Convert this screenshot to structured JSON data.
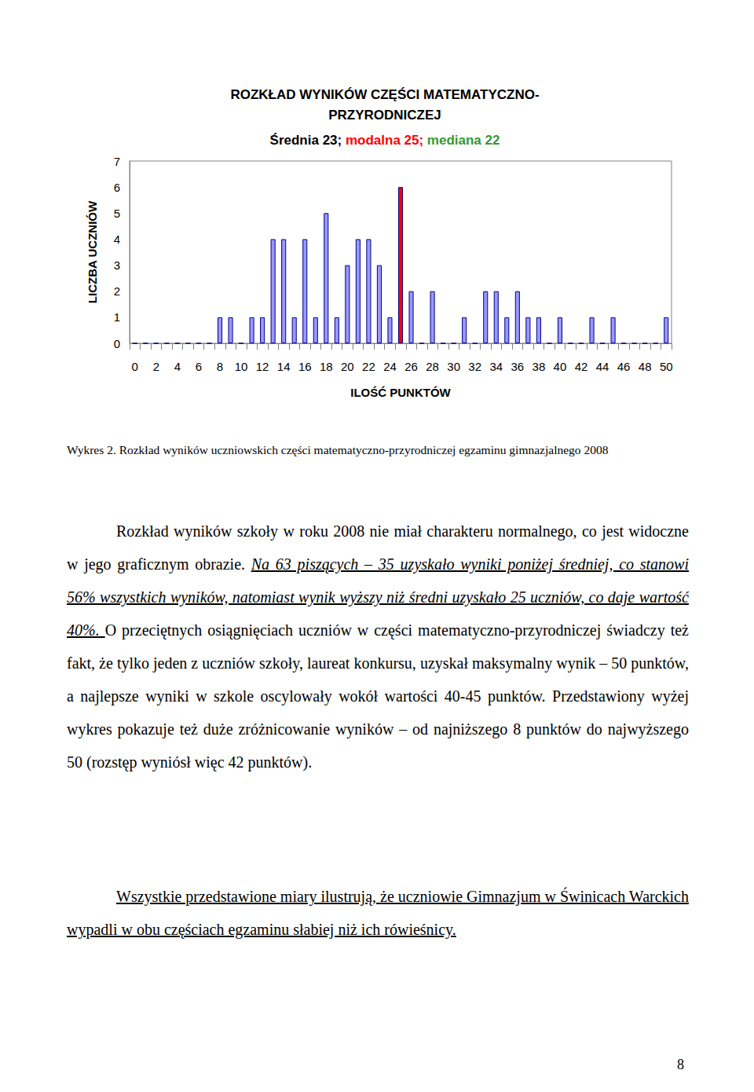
{
  "chart_data": {
    "type": "bar",
    "title": "ROZKŁAD WYNIKÓW CZĘŚCI MATEMATYCZNO-\nPRZYRODNICZEJ",
    "subtitle": [
      {
        "text": "Średnia 23; ",
        "color": "#000000"
      },
      {
        "text": "modalna 25; ",
        "color": "#ff0000"
      },
      {
        "text": "mediana 22",
        "color": "#339933"
      }
    ],
    "x_label": "ILOŚĆ PUNKTÓW",
    "y_label": "LICZBA UCZNIÓW",
    "categories": [
      "0",
      null,
      "2",
      null,
      "4",
      null,
      "6",
      null,
      "8",
      null,
      "10",
      null,
      "12",
      null,
      "14",
      null,
      "16",
      null,
      "18",
      null,
      "20",
      null,
      "22",
      null,
      "24",
      null,
      "26",
      null,
      "28",
      null,
      "30",
      null,
      "32",
      null,
      "34",
      null,
      "36",
      null,
      "38",
      null,
      "40",
      null,
      "42",
      null,
      "44",
      null,
      "46",
      null,
      "48",
      null,
      "50"
    ],
    "values": [
      0,
      0,
      0,
      0,
      0,
      0,
      0,
      0,
      1,
      1,
      0,
      1,
      1,
      4,
      4,
      1,
      4,
      1,
      5,
      1,
      3,
      4,
      4,
      3,
      1,
      6,
      2,
      0,
      2,
      0,
      0,
      1,
      0,
      2,
      2,
      1,
      2,
      1,
      1,
      0,
      1,
      0,
      0,
      1,
      0,
      1,
      0,
      0,
      0,
      0,
      1
    ],
    "colors": [
      "#9999ff",
      "#9999ff",
      "#9999ff",
      "#9999ff",
      "#9999ff",
      "#9999ff",
      "#9999ff",
      "#9999ff",
      "#9999ff",
      "#9999ff",
      "#9999ff",
      "#9999ff",
      "#9999ff",
      "#9999ff",
      "#9999ff",
      "#9999ff",
      "#9999ff",
      "#9999ff",
      "#9999ff",
      "#9999ff",
      "#9999ff",
      "#9999ff",
      "#9999ff",
      "#9999ff",
      "#9999ff",
      "#ff0000",
      "#9999ff",
      "#9999ff",
      "#9999ff",
      "#9999ff",
      "#9999ff",
      "#9999ff",
      "#9999ff",
      "#9999ff",
      "#9999ff",
      "#9999ff",
      "#9999ff",
      "#9999ff",
      "#9999ff",
      "#9999ff",
      "#9999ff",
      "#9999ff",
      "#9999ff",
      "#9999ff",
      "#9999ff",
      "#9999ff",
      "#9999ff",
      "#9999ff",
      "#9999ff",
      "#9999ff",
      "#9999ff"
    ],
    "ylim": [
      0,
      7
    ],
    "yticks": [
      0,
      1,
      2,
      3,
      4,
      5,
      6,
      7
    ],
    "grid": false
  },
  "caption": "Wykres 2. Rozkład wyników uczniowskich części matematyczno-przyrodniczej egzaminu gimnazjalnego 2008",
  "paragraphs": [
    [
      {
        "text": "Rozkład wyników szkoły w roku 2008 nie miał charakteru normalnego, co jest widoczne w jego graficznym obrazie. ",
        "style": "plain"
      },
      {
        "text": "Na 63 piszących – 35 uzyskało wyniki poniżej średniej, co stanowi 56% wszystkich wyników, natomiast wynik wyższy niż średni uzyskało 25 uczniów, co daje wartość 40%. ",
        "style": "italic_underline"
      },
      {
        "text": "O przeciętnych osiągnięciach uczniów w części matematyczno-przyrodniczej świadczy też fakt, że tylko jeden z uczniów szkoły, laureat konkursu, uzyskał maksymalny wynik – 50 punktów, a najlepsze wyniki w szkole oscylowały wokół wartości 40-45 punktów. Przedstawiony wyżej wykres pokazuje też duże zróżnicowanie wyników – od najniższego 8 punktów do najwyższego 50 (rozstęp wyniósł więc 42 punktów).",
        "style": "plain"
      }
    ],
    [
      {
        "text": "Wszystkie przedstawione miary ilustrują, że uczniowie Gimnazjum w Świnicach Warckich wypadli w obu częściach egzaminu słabiej niż ich rówieśnicy.",
        "style": "underline"
      }
    ]
  ],
  "page_number": "8"
}
